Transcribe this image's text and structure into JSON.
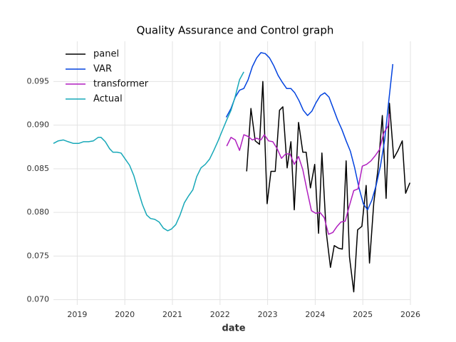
{
  "chart_data": {
    "type": "line",
    "title": "Quality Assurance and Control graph",
    "x_label": "date",
    "xlim": [
      2018.5,
      2026
    ],
    "xticks": [
      2019,
      2020,
      2021,
      2022,
      2023,
      2024,
      2025,
      2026
    ],
    "ylim": [
      0.0694,
      0.0996
    ],
    "yticks": [
      {
        "value": 0.07,
        "label": "0.070"
      },
      0.075,
      {
        "value": 0.08,
        "label": "0.080"
      },
      0.085,
      {
        "value": 0.09,
        "label": "0.090"
      },
      0.095
    ],
    "grid": true,
    "legend": "upper-left",
    "series": [
      {
        "name": "panel",
        "color": "#000000",
        "x": [
          2022.56,
          2022.65,
          2022.74,
          2022.83,
          2022.9,
          2022.99,
          2023.07,
          2023.16,
          2023.25,
          2023.32,
          2023.41,
          2023.49,
          2023.56,
          2023.65,
          2023.74,
          2023.81,
          2023.9,
          2023.99,
          2024.07,
          2024.14,
          2024.23,
          2024.32,
          2024.4,
          2024.49,
          2024.57,
          2024.65,
          2024.72,
          2024.81,
          2024.89,
          2024.98,
          2025.07,
          2025.14,
          2025.23,
          2025.32,
          2025.41,
          2025.49,
          2025.56,
          2025.65,
          2025.74,
          2025.83,
          2025.9,
          2025.99
        ],
        "values": [
          0.0847,
          0.0919,
          0.0882,
          0.0878,
          0.095,
          0.081,
          0.0847,
          0.0847,
          0.0917,
          0.0921,
          0.0851,
          0.0881,
          0.0803,
          0.0903,
          0.0869,
          0.0869,
          0.0828,
          0.0855,
          0.0776,
          0.0868,
          0.0778,
          0.0737,
          0.0762,
          0.0759,
          0.0758,
          0.0859,
          0.0749,
          0.0709,
          0.078,
          0.0784,
          0.0831,
          0.0742,
          0.0811,
          0.085,
          0.0911,
          0.0816,
          0.0925,
          0.0862,
          0.0871,
          0.0882,
          0.0822,
          0.0834
        ]
      },
      {
        "name": "VAR",
        "color": "#0343df",
        "x": [
          2022.13,
          2022.23,
          2022.32,
          2022.41,
          2022.5,
          2022.59,
          2022.68,
          2022.77,
          2022.86,
          2022.95,
          2023.04,
          2023.13,
          2023.22,
          2023.31,
          2023.4,
          2023.49,
          2023.57,
          2023.66,
          2023.75,
          2023.84,
          2023.93,
          2024.02,
          2024.11,
          2024.2,
          2024.29,
          2024.38,
          2024.47,
          2024.56,
          2024.65,
          2024.74,
          2024.83,
          2024.92,
          2025.01,
          2025.1,
          2025.19,
          2025.28,
          2025.37,
          2025.46,
          2025.54,
          2025.63
        ],
        "values": [
          0.0909,
          0.0919,
          0.0932,
          0.094,
          0.0942,
          0.0952,
          0.0967,
          0.0977,
          0.0983,
          0.0982,
          0.0977,
          0.0968,
          0.0957,
          0.0949,
          0.0942,
          0.0942,
          0.0937,
          0.0928,
          0.0917,
          0.0911,
          0.0916,
          0.0926,
          0.0934,
          0.0937,
          0.0932,
          0.0919,
          0.0906,
          0.0895,
          0.0882,
          0.087,
          0.0851,
          0.0828,
          0.081,
          0.0803,
          0.0814,
          0.0831,
          0.0853,
          0.0883,
          0.0925,
          0.097
        ]
      },
      {
        "name": "transformer",
        "color": "#b01fbf",
        "x": [
          2022.14,
          2022.23,
          2022.32,
          2022.41,
          2022.5,
          2022.59,
          2022.68,
          2022.77,
          2022.86,
          2022.93,
          2023.02,
          2023.11,
          2023.2,
          2023.29,
          2023.38,
          2023.47,
          2023.56,
          2023.65,
          2023.74,
          2023.83,
          2023.92,
          2024.01,
          2024.1,
          2024.19,
          2024.28,
          2024.37,
          2024.46,
          2024.54,
          2024.63,
          2024.72,
          2024.81,
          2024.9,
          2024.99,
          2025.08,
          2025.17,
          2025.26,
          2025.35,
          2025.44,
          2025.53,
          2025.56
        ],
        "values": [
          0.0876,
          0.0886,
          0.0883,
          0.0871,
          0.0889,
          0.0887,
          0.0883,
          0.0885,
          0.0883,
          0.0889,
          0.0882,
          0.0881,
          0.0873,
          0.0862,
          0.0867,
          0.0867,
          0.0855,
          0.0864,
          0.0849,
          0.0825,
          0.0802,
          0.0799,
          0.08,
          0.0794,
          0.0775,
          0.0777,
          0.0784,
          0.0789,
          0.079,
          0.0808,
          0.0825,
          0.0827,
          0.0853,
          0.0855,
          0.0859,
          0.0865,
          0.0872,
          0.0891,
          0.0899,
          0.0913
        ]
      },
      {
        "name": "Actual",
        "color": "#17a8b8",
        "x": [
          2018.5,
          2018.6,
          2018.71,
          2018.81,
          2018.92,
          2019.03,
          2019.13,
          2019.24,
          2019.34,
          2019.44,
          2019.5,
          2019.59,
          2019.68,
          2019.75,
          2019.84,
          2019.92,
          2020.01,
          2020.1,
          2020.19,
          2020.28,
          2020.37,
          2020.46,
          2020.54,
          2020.63,
          2020.72,
          2020.81,
          2020.9,
          2020.98,
          2021.07,
          2021.16,
          2021.25,
          2021.34,
          2021.43,
          2021.51,
          2021.6,
          2021.69,
          2021.78,
          2021.87,
          2021.96,
          2022.05,
          2022.14,
          2022.23,
          2022.32,
          2022.41,
          2022.5
        ],
        "values": [
          0.0879,
          0.0882,
          0.0883,
          0.0881,
          0.0879,
          0.0879,
          0.0881,
          0.0881,
          0.0882,
          0.0886,
          0.0886,
          0.0881,
          0.0873,
          0.0869,
          0.0869,
          0.0868,
          0.0861,
          0.0854,
          0.0842,
          0.0825,
          0.0809,
          0.0797,
          0.0793,
          0.0792,
          0.0789,
          0.0782,
          0.0779,
          0.0781,
          0.0786,
          0.0797,
          0.0811,
          0.0819,
          0.0826,
          0.0841,
          0.0851,
          0.0855,
          0.0861,
          0.0871,
          0.0882,
          0.0894,
          0.0906,
          0.0917,
          0.0933,
          0.0952,
          0.0961
        ]
      }
    ]
  }
}
